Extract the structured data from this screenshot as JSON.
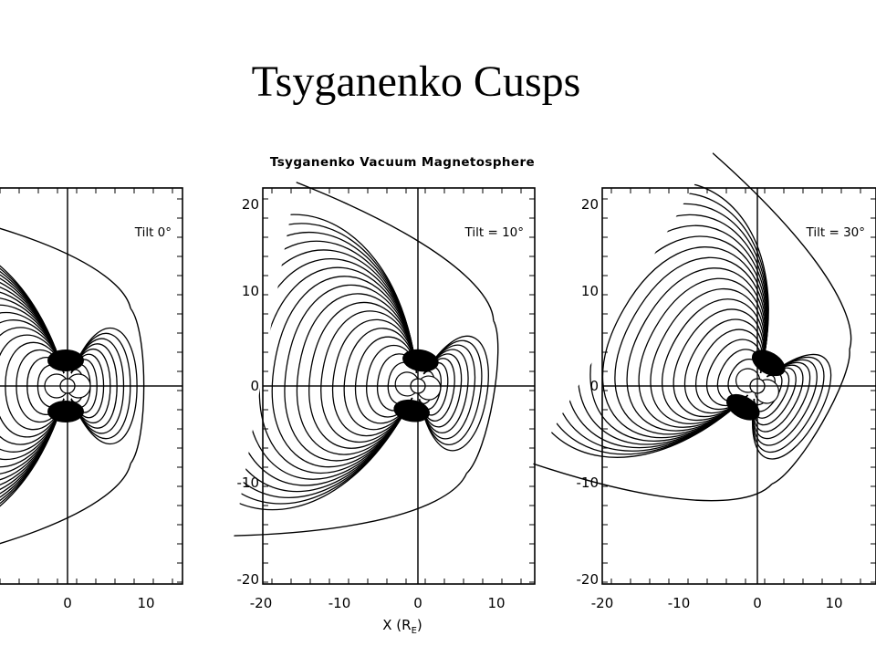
{
  "slide": {
    "title": "Tsyganenko Cusps"
  },
  "figure": {
    "title": "Tsyganenko Vacuum Magnetosphere",
    "xlabel_main": "X (R",
    "xlabel_sub": "E",
    "xlabel_end": ")"
  },
  "panels": [
    {
      "label": "Tilt 0°",
      "tilt_deg": 0,
      "x_ticks": [
        "0",
        "10"
      ],
      "y_ticks": []
    },
    {
      "label": "Tilt = 10°",
      "tilt_deg": 10,
      "x_ticks": [
        "-20",
        "-10",
        "0",
        "10"
      ],
      "y_ticks": [
        "20",
        "10",
        "0",
        "-10",
        "-20"
      ]
    },
    {
      "label": "Tilt = 30°",
      "tilt_deg": 30,
      "x_ticks": [
        "-20",
        "-10",
        "0",
        "10"
      ],
      "y_ticks": [
        "20",
        "10",
        "0",
        "-10",
        "-20"
      ]
    }
  ],
  "colors": {
    "ink": "#000000",
    "background": "#ffffff"
  }
}
